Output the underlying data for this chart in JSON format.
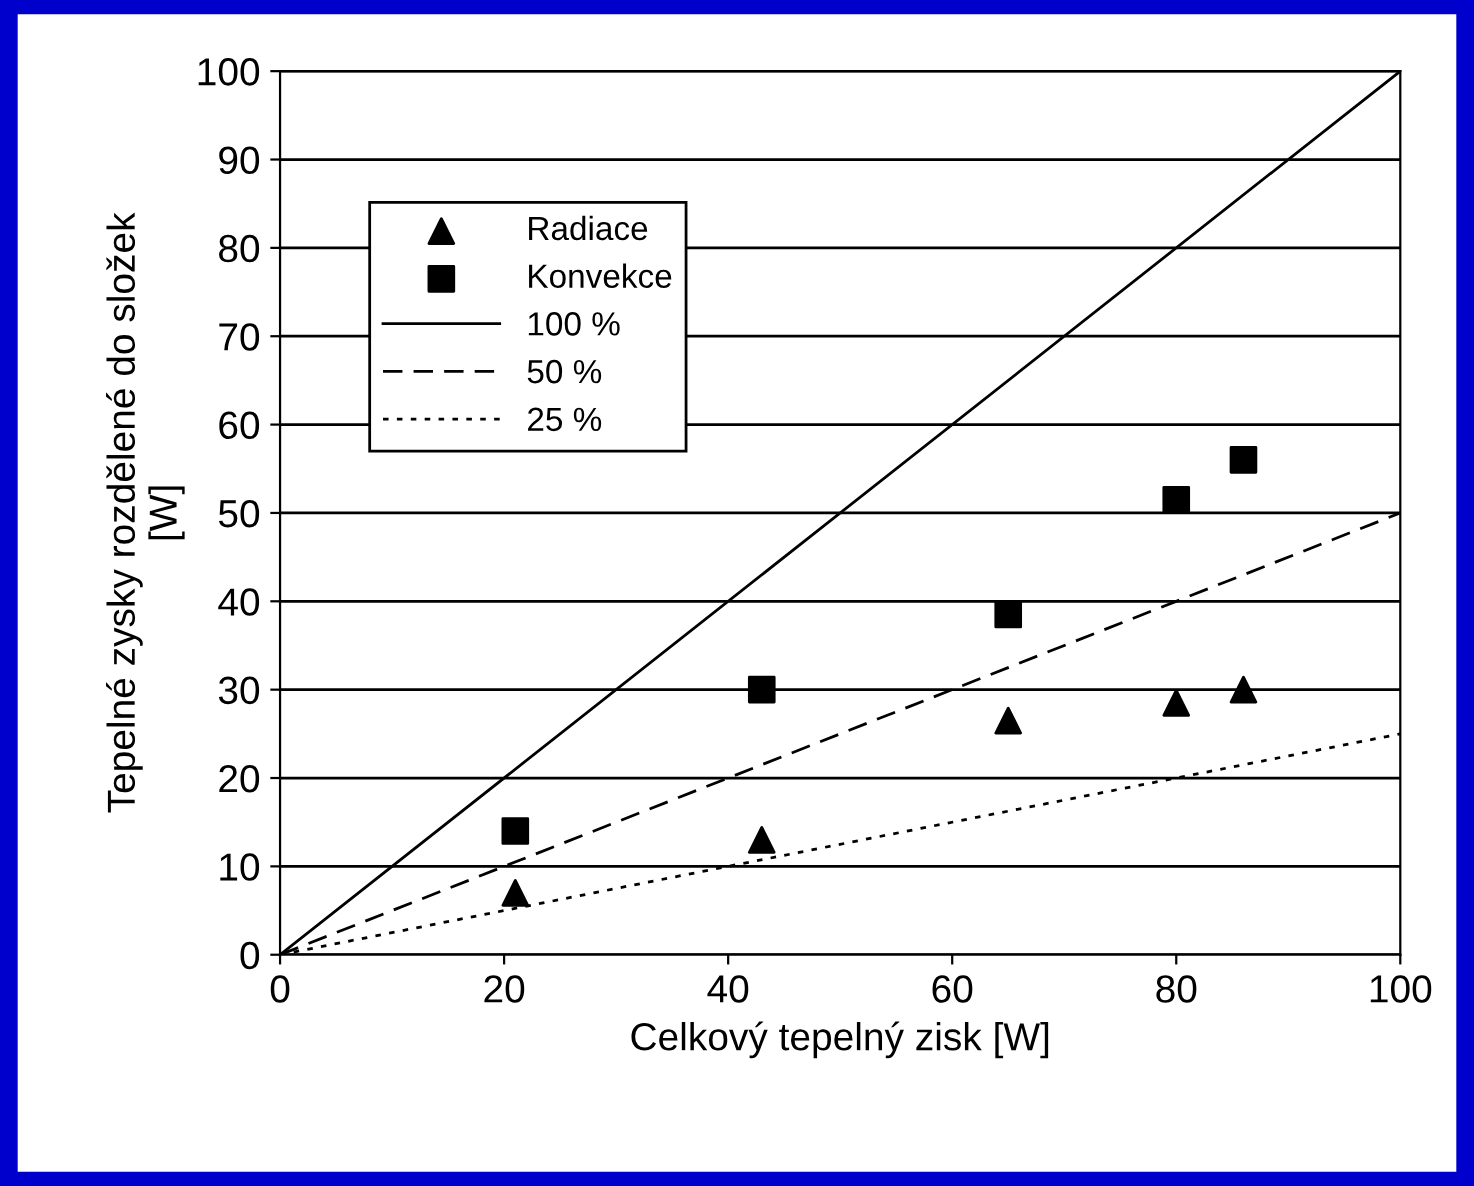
{
  "chart_data": {
    "type": "scatter",
    "xlabel": "Celkový tepelný zisk [W]",
    "ylabel": "Tepelné zysky rozdělené do složek\n[W]",
    "xlim": [
      0,
      100
    ],
    "xticks": [
      0,
      20,
      40,
      60,
      80,
      100
    ],
    "ylim": [
      0,
      100
    ],
    "yticks": [
      0,
      10,
      20,
      30,
      40,
      50,
      60,
      70,
      80,
      90,
      100
    ],
    "grid": "y",
    "legend": "top left",
    "series": [
      {
        "name": "Radiace",
        "marker": "triangle",
        "color": "#000000",
        "x": [
          21,
          43,
          65,
          80,
          86
        ],
        "values": [
          7,
          13,
          26.5,
          28.5,
          30
        ]
      },
      {
        "name": "Konvekce",
        "marker": "square",
        "color": "#000000",
        "x": [
          21,
          43,
          65,
          80,
          86
        ],
        "values": [
          14,
          30,
          38.5,
          51.5,
          56
        ]
      },
      {
        "name": "100 %",
        "type": "line",
        "line_style": "solid",
        "color": "#000000",
        "x": [
          0,
          100
        ],
        "values": [
          0,
          100
        ]
      },
      {
        "name": "50 %",
        "type": "line",
        "line_style": "dashed",
        "color": "#000000",
        "x": [
          0,
          100
        ],
        "values": [
          0,
          50
        ]
      },
      {
        "name": "25 %",
        "type": "line",
        "line_style": "dotted",
        "color": "#000000",
        "x": [
          0,
          100
        ],
        "values": [
          0,
          25
        ]
      }
    ]
  }
}
